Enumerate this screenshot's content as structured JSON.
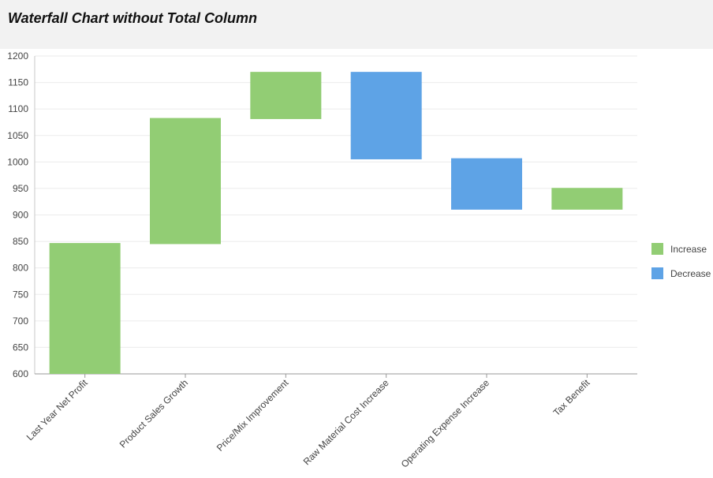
{
  "page": {
    "title": "Waterfall Chart without Total Column"
  },
  "chart_data": {
    "type": "bar",
    "subtype": "waterfall",
    "title": "Waterfall Chart without Total Column",
    "xlabel": "",
    "ylabel": "",
    "ylim": [
      600,
      1200
    ],
    "ytick_step": 50,
    "grid": "horizontal",
    "legend_position": "right",
    "categories": [
      "Last Year Net Profit",
      "Product Sales Growth",
      "Price/Mix Improvement",
      "Raw Material Cost Increase",
      "Operating Expense Increase",
      "Tax Benefit"
    ],
    "bars": [
      {
        "start": 600,
        "end": 847,
        "kind": "Increase"
      },
      {
        "start": 845,
        "end": 1083,
        "kind": "Increase"
      },
      {
        "start": 1081,
        "end": 1170,
        "kind": "Increase"
      },
      {
        "start": 1170,
        "end": 1005,
        "kind": "Decrease"
      },
      {
        "start": 1007,
        "end": 910,
        "kind": "Decrease"
      },
      {
        "start": 910,
        "end": 951,
        "kind": "Increase"
      }
    ],
    "legend": [
      {
        "label": "Increase",
        "color": "#92cd74"
      },
      {
        "label": "Decrease",
        "color": "#5ea3e6"
      }
    ],
    "colors": {
      "Increase": "#92cd74",
      "Decrease": "#5ea3e6"
    }
  }
}
